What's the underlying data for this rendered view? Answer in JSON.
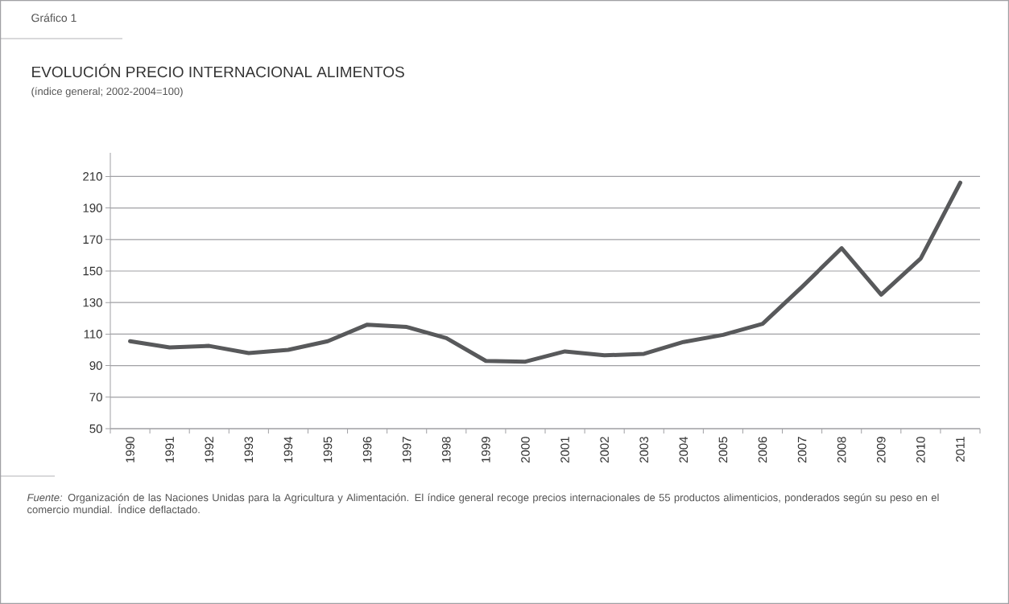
{
  "chart_data": {
    "type": "line",
    "title": "EVOLUCIÓN PRECIO INTERNACIONAL ALIMENTOS",
    "subtitle": "(índice general; 2002-2004=100)",
    "categories": [
      "1990",
      "1991",
      "1992",
      "1993",
      "1994",
      "1995",
      "1996",
      "1997",
      "1998",
      "1999",
      "2000",
      "2001",
      "2002",
      "2003",
      "2004",
      "2005",
      "2006",
      "2007",
      "2008",
      "2009",
      "2010",
      "2011"
    ],
    "values": [
      105.5,
      101.5,
      102.5,
      98,
      100,
      105.5,
      116,
      114.5,
      107.5,
      93,
      92.5,
      99,
      96.5,
      97.5,
      105,
      109.5,
      116.5,
      140,
      164.5,
      135,
      158,
      206
    ],
    "color": "#58595b",
    "ylim": [
      50,
      225
    ],
    "yticks": [
      50,
      70,
      90,
      110,
      130,
      150,
      170,
      190,
      210
    ],
    "grid": "y",
    "annotations": [
      "Gráfico 1",
      "*Fuente:* Organización de las Naciones Unidas para la Agricultura y Alimentación. El índice general recoge precios internacionales de 55 productos alimenticios, ponderados según su peso en el comercio mundial. Índice deflactado."
    ]
  }
}
